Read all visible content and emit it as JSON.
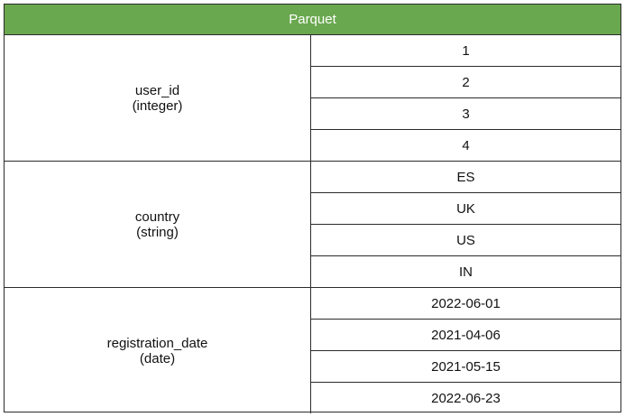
{
  "colors": {
    "header_bg": "#6aa84f",
    "header_text": "#ffffff",
    "border": "#2b2b2b"
  },
  "header": {
    "title": "Parquet"
  },
  "columns": [
    {
      "name": "user_id",
      "type": "(integer)",
      "values": [
        "1",
        "2",
        "3",
        "4"
      ]
    },
    {
      "name": "country",
      "type": "(string)",
      "values": [
        "ES",
        "UK",
        "US",
        "IN"
      ]
    },
    {
      "name": "registration_date",
      "type": "(date)",
      "values": [
        "2022-06-01",
        "2021-04-06",
        "2021-05-15",
        "2022-06-23"
      ]
    }
  ]
}
